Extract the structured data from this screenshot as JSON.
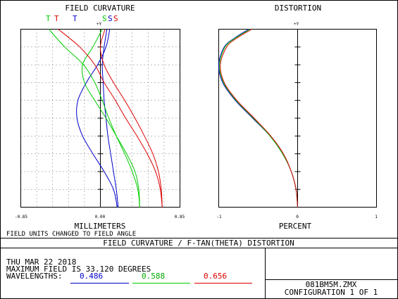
{
  "colors": {
    "blue": "#0000cc",
    "green": "#00cc00",
    "red": "#dd0000",
    "frame": "#000000",
    "grid": "#000000"
  },
  "chart_data": [
    {
      "type": "line",
      "title": "FIELD CURVATURE",
      "ylabel": "+Y",
      "xlabel": "MILLIMETERS",
      "xlim": [
        -0.85,
        0.85
      ],
      "ylim": [
        0,
        1
      ],
      "x_ticks": [
        "-0.85",
        "0.00",
        "0.85"
      ],
      "grid": true,
      "legend": [
        {
          "label": "T",
          "color": "green"
        },
        {
          "label": "T",
          "color": "red"
        },
        {
          "label": "T",
          "color": "blue"
        },
        {
          "label": "S",
          "color": "green"
        },
        {
          "label": "S",
          "color": "blue"
        },
        {
          "label": "S",
          "color": "red"
        }
      ],
      "series": [
        {
          "color": "blue",
          "y": [
            0,
            0.1,
            0.2,
            0.3,
            0.4,
            0.5,
            0.6,
            0.7,
            0.8,
            0.9,
            1.0
          ],
          "x": [
            0.18,
            0.14,
            0.04,
            -0.08,
            -0.19,
            -0.25,
            -0.24,
            -0.15,
            -0.03,
            0.06,
            0.1
          ]
        },
        {
          "color": "blue",
          "y": [
            0,
            0.1,
            0.2,
            0.3,
            0.4,
            0.5,
            0.6,
            0.7,
            0.8,
            0.9,
            1.0
          ],
          "x": [
            0.19,
            0.17,
            0.14,
            0.11,
            0.08,
            0.06,
            0.04,
            0.03,
            0.02,
            0.04,
            0.07
          ]
        },
        {
          "color": "green",
          "y": [
            0,
            0.1,
            0.2,
            0.3,
            0.4,
            0.5,
            0.6,
            0.7,
            0.8,
            0.9,
            1.0
          ],
          "x": [
            0.42,
            0.41,
            0.37,
            0.28,
            0.17,
            0.06,
            -0.06,
            -0.17,
            -0.19,
            -0.08,
            0.02
          ]
        },
        {
          "color": "green",
          "y": [
            0,
            0.1,
            0.2,
            0.3,
            0.4,
            0.5,
            0.6,
            0.7,
            0.8,
            0.9,
            1.0
          ],
          "x": [
            0.42,
            0.4,
            0.34,
            0.26,
            0.17,
            0.09,
            0.02,
            -0.06,
            -0.18,
            -0.38,
            -0.55
          ]
        },
        {
          "color": "red",
          "y": [
            0,
            0.1,
            0.2,
            0.3,
            0.4,
            0.5,
            0.6,
            0.7,
            0.8,
            0.9,
            1.0
          ],
          "x": [
            0.66,
            0.65,
            0.62,
            0.56,
            0.47,
            0.37,
            0.26,
            0.14,
            0.04,
            0.0,
            0.05
          ]
        },
        {
          "color": "red",
          "y": [
            0,
            0.1,
            0.2,
            0.3,
            0.4,
            0.5,
            0.6,
            0.7,
            0.8,
            0.9,
            1.0
          ],
          "x": [
            0.66,
            0.64,
            0.59,
            0.5,
            0.39,
            0.27,
            0.16,
            0.04,
            -0.06,
            -0.22,
            -0.45
          ]
        }
      ]
    },
    {
      "type": "line",
      "title": "DISTORTION",
      "ylabel": "+Y",
      "xlabel": "PERCENT",
      "xlim": [
        -1,
        1
      ],
      "ylim": [
        0,
        1
      ],
      "x_ticks": [
        "-1",
        "0",
        "1"
      ],
      "grid": false,
      "series": [
        {
          "color": "blue",
          "y": [
            0,
            0.1,
            0.2,
            0.3,
            0.4,
            0.5,
            0.6,
            0.7,
            0.8,
            0.9,
            0.95,
            1.0
          ],
          "x": [
            0,
            -0.02,
            -0.08,
            -0.19,
            -0.35,
            -0.57,
            -0.79,
            -0.95,
            -1.0,
            -0.93,
            -0.8,
            -0.62
          ]
        },
        {
          "color": "green",
          "y": [
            0,
            0.1,
            0.2,
            0.3,
            0.4,
            0.5,
            0.6,
            0.7,
            0.8,
            0.9,
            0.95,
            1.0
          ],
          "x": [
            0,
            -0.02,
            -0.08,
            -0.19,
            -0.35,
            -0.56,
            -0.78,
            -0.94,
            -0.99,
            -0.92,
            -0.79,
            -0.6
          ]
        },
        {
          "color": "red",
          "y": [
            0,
            0.1,
            0.2,
            0.3,
            0.4,
            0.5,
            0.6,
            0.7,
            0.8,
            0.9,
            0.95,
            1.0
          ],
          "x": [
            0,
            -0.02,
            -0.08,
            -0.18,
            -0.34,
            -0.55,
            -0.77,
            -0.93,
            -0.98,
            -0.9,
            -0.77,
            -0.58
          ]
        }
      ]
    }
  ],
  "notes": {
    "field_units": "FIELD UNITS CHANGED TO FIELD ANGLE"
  },
  "info": {
    "banner": "FIELD CURVATURE / F-TAN(THETA) DISTORTION",
    "date": "THU MAR 22 2018",
    "max_field": "MAXIMUM FIELD IS 33.120 DEGREES",
    "wavelengths_label": "WAVELENGTHS:",
    "wavelengths": [
      {
        "value": "0.486",
        "color": "blue"
      },
      {
        "value": "0.588",
        "color": "green"
      },
      {
        "value": "0.656",
        "color": "red"
      }
    ],
    "filename": "081BM5M.ZMX",
    "configuration": "CONFIGURATION 1 OF 1"
  }
}
